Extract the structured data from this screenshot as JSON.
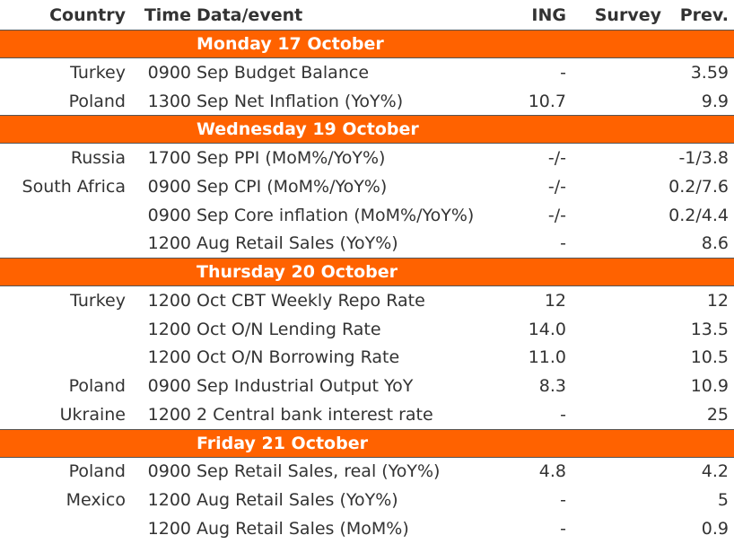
{
  "headers": {
    "country": "Country",
    "time": "Time",
    "event": "Data/event",
    "ing": "ING",
    "survey": "Survey",
    "prev": "Prev."
  },
  "accent_color": "#FF6200",
  "sections": [
    {
      "day": "Monday 17 October",
      "rows": [
        {
          "country": "Turkey",
          "time": "0900",
          "event": "Sep Budget Balance",
          "ing": "-",
          "survey": "",
          "prev": "3.59"
        },
        {
          "country": "Poland",
          "time": "1300",
          "event": "Sep Net Inflation (YoY%)",
          "ing": "10.7",
          "survey": "",
          "prev": "9.9"
        }
      ]
    },
    {
      "day": "Wednesday 19 October",
      "rows": [
        {
          "country": "Russia",
          "time": "1700",
          "event": "Sep PPI (MoM%/YoY%)",
          "ing": "-/-",
          "survey": "",
          "prev": "-1/3.8"
        },
        {
          "country": "South Africa",
          "time": "0900",
          "event": "Sep CPI (MoM%/YoY%)",
          "ing": "-/-",
          "survey": "",
          "prev": "0.2/7.6"
        },
        {
          "country": "",
          "time": "0900",
          "event": "Sep Core inflation (MoM%/YoY%)",
          "ing": "-/-",
          "survey": "",
          "prev": "0.2/4.4"
        },
        {
          "country": "",
          "time": "1200",
          "event": "Aug Retail Sales (YoY%)",
          "ing": "-",
          "survey": "",
          "prev": "8.6"
        }
      ]
    },
    {
      "day": "Thursday 20 October",
      "rows": [
        {
          "country": "Turkey",
          "time": "1200",
          "event": "Oct CBT Weekly Repo Rate",
          "ing": "12",
          "survey": "",
          "prev": "12"
        },
        {
          "country": "",
          "time": "1200",
          "event": "Oct O/N Lending Rate",
          "ing": "14.0",
          "survey": "",
          "prev": "13.5"
        },
        {
          "country": "",
          "time": "1200",
          "event": "Oct O/N Borrowing Rate",
          "ing": "11.0",
          "survey": "",
          "prev": "10.5"
        },
        {
          "country": "Poland",
          "time": "0900",
          "event": "Sep Industrial Output YoY",
          "ing": "8.3",
          "survey": "",
          "prev": "10.9"
        },
        {
          "country": "Ukraine",
          "time": "1200",
          "event": "2 Central bank interest rate",
          "ing": "-",
          "survey": "",
          "prev": "25"
        }
      ]
    },
    {
      "day": "Friday 21 October",
      "rows": [
        {
          "country": "Poland",
          "time": "0900",
          "event": "Sep Retail Sales, real (YoY%)",
          "ing": "4.8",
          "survey": "",
          "prev": "4.2"
        },
        {
          "country": "Mexico",
          "time": "1200",
          "event": "Aug Retail Sales (YoY%)",
          "ing": "-",
          "survey": "",
          "prev": "5"
        },
        {
          "country": "",
          "time": "1200",
          "event": "Aug Retail Sales (MoM%)",
          "ing": "-",
          "survey": "",
          "prev": "0.9"
        }
      ]
    }
  ]
}
